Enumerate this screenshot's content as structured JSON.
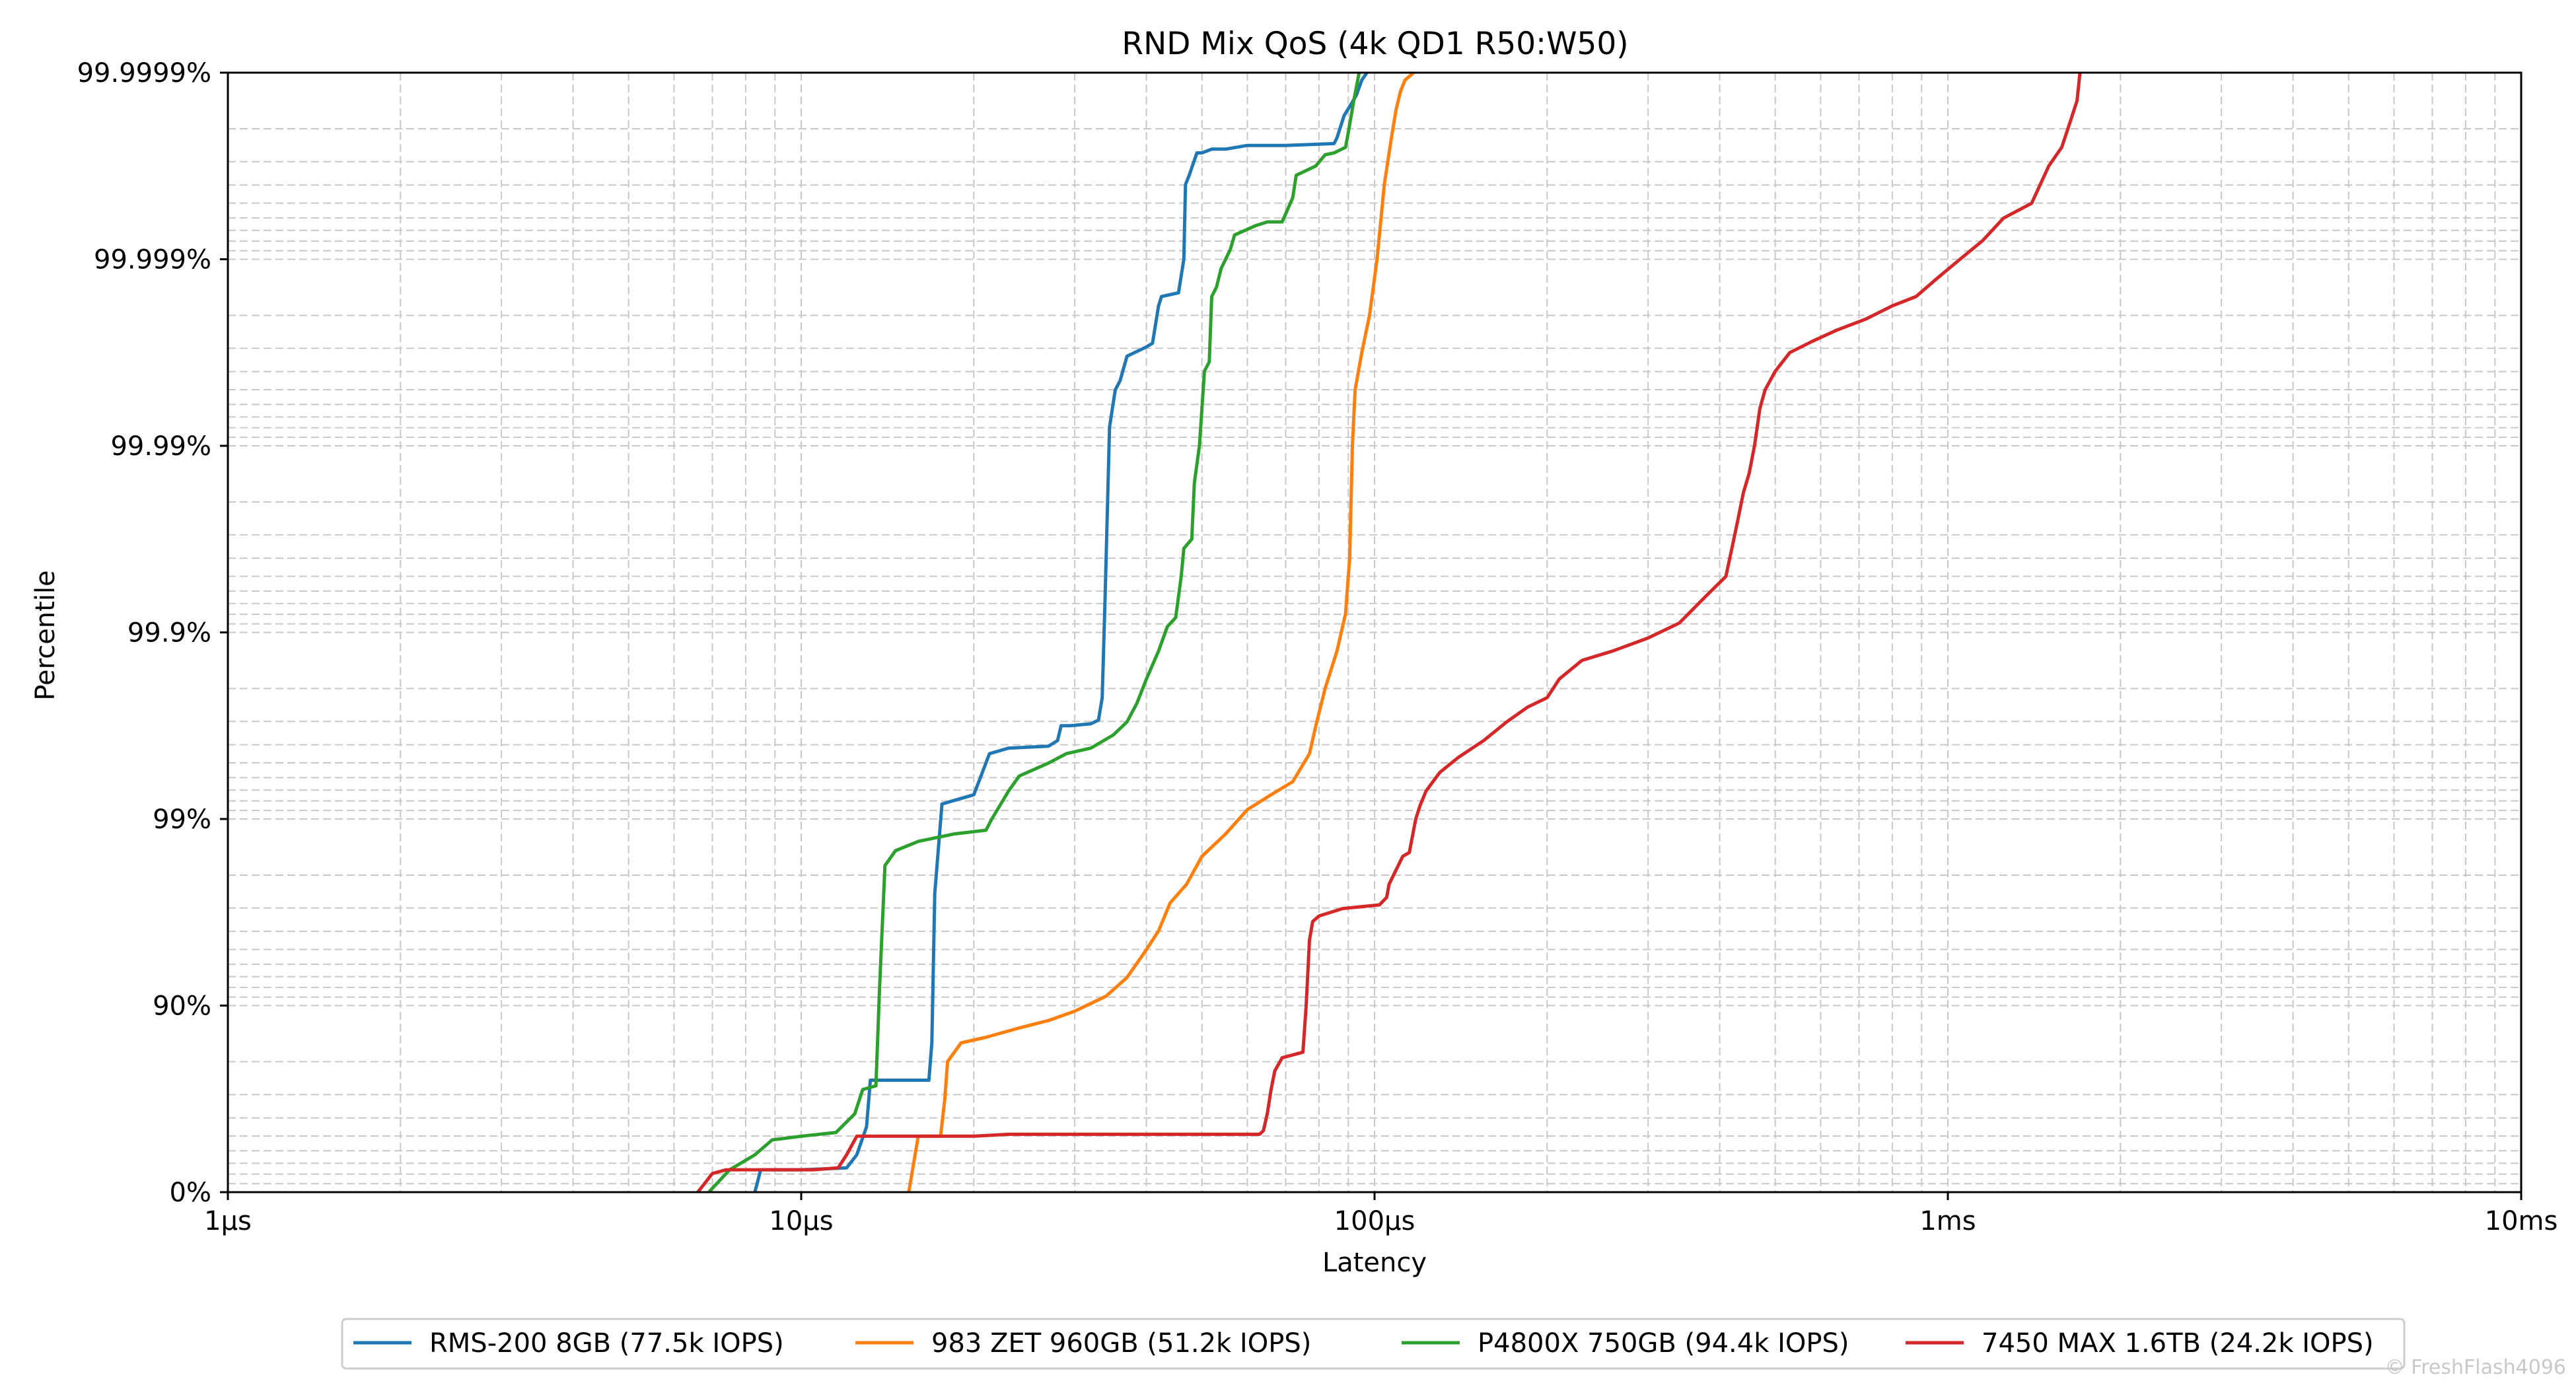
{
  "chart_data": {
    "type": "line",
    "title": "RND Mix QoS (4k QD1 R50:W50)",
    "xlabel": "Latency",
    "ylabel": "Percentile",
    "x_scale": "log",
    "x_unit": "µs",
    "xlim": [
      1,
      10000
    ],
    "x_ticks": [
      {
        "value": 1,
        "label": "1µs"
      },
      {
        "value": 10,
        "label": "10µs"
      },
      {
        "value": 100,
        "label": "100µs"
      },
      {
        "value": 1000,
        "label": "1ms"
      },
      {
        "value": 10000,
        "label": "10ms"
      }
    ],
    "y_scale": "nines",
    "ylim": [
      0,
      6
    ],
    "y_ticks": [
      {
        "value": 0,
        "label": "0%"
      },
      {
        "value": 1,
        "label": "90%"
      },
      {
        "value": 2,
        "label": "99%"
      },
      {
        "value": 3,
        "label": "99.9%"
      },
      {
        "value": 4,
        "label": "99.99%"
      },
      {
        "value": 5,
        "label": "99.999%"
      },
      {
        "value": 6,
        "label": "99.9999%"
      }
    ],
    "grid": true,
    "legend_position": "bottom",
    "series": [
      {
        "name": "RMS-200 8GB (77.5k IOPS)",
        "color": "#1f77b4",
        "points": [
          [
            8.3,
            0
          ],
          [
            8.5,
            0.12
          ],
          [
            10,
            0.12
          ],
          [
            12,
            0.13
          ],
          [
            12.5,
            0.2
          ],
          [
            13,
            0.35
          ],
          [
            13.2,
            0.6
          ],
          [
            15,
            0.6
          ],
          [
            16.7,
            0.6
          ],
          [
            16.9,
            0.8
          ],
          [
            17.1,
            1.6
          ],
          [
            17.6,
            2.08
          ],
          [
            18.5,
            2.1
          ],
          [
            20,
            2.13
          ],
          [
            20.7,
            2.25
          ],
          [
            21.3,
            2.35
          ],
          [
            23,
            2.38
          ],
          [
            27,
            2.39
          ],
          [
            28,
            2.42
          ],
          [
            28.4,
            2.5
          ],
          [
            29.5,
            2.5
          ],
          [
            32,
            2.51
          ],
          [
            33,
            2.53
          ],
          [
            33.5,
            2.65
          ],
          [
            33.9,
            3.2
          ],
          [
            34.5,
            4.1
          ],
          [
            35.3,
            4.3
          ],
          [
            36,
            4.35
          ],
          [
            37,
            4.48
          ],
          [
            40,
            4.53
          ],
          [
            41,
            4.55
          ],
          [
            42,
            4.75
          ],
          [
            42.5,
            4.8
          ],
          [
            45.5,
            4.82
          ],
          [
            46.5,
            5.0
          ],
          [
            46.8,
            5.4
          ],
          [
            47.5,
            5.45
          ],
          [
            49,
            5.57
          ],
          [
            50,
            5.57
          ],
          [
            52,
            5.59
          ],
          [
            55,
            5.59
          ],
          [
            60,
            5.61
          ],
          [
            70,
            5.61
          ],
          [
            85,
            5.62
          ],
          [
            86,
            5.65
          ],
          [
            88.5,
            5.77
          ],
          [
            91,
            5.83
          ],
          [
            93,
            5.88
          ],
          [
            95,
            5.96
          ],
          [
            97,
            6.0
          ]
        ]
      },
      {
        "name": "983 ZET 960GB (51.2k IOPS)",
        "color": "#ff7f0e",
        "points": [
          [
            15.4,
            0
          ],
          [
            15.6,
            0.1
          ],
          [
            16,
            0.3
          ],
          [
            17.5,
            0.3
          ],
          [
            17.8,
            0.5
          ],
          [
            18,
            0.7
          ],
          [
            19,
            0.8
          ],
          [
            21,
            0.83
          ],
          [
            24,
            0.88
          ],
          [
            27,
            0.92
          ],
          [
            30,
            0.97
          ],
          [
            34,
            1.05
          ],
          [
            37,
            1.15
          ],
          [
            40,
            1.3
          ],
          [
            42,
            1.4
          ],
          [
            44,
            1.55
          ],
          [
            47,
            1.65
          ],
          [
            50,
            1.8
          ],
          [
            55,
            1.92
          ],
          [
            60,
            2.05
          ],
          [
            66,
            2.13
          ],
          [
            72,
            2.2
          ],
          [
            77,
            2.35
          ],
          [
            79,
            2.5
          ],
          [
            82,
            2.7
          ],
          [
            86,
            2.9
          ],
          [
            89,
            3.1
          ],
          [
            90.5,
            3.4
          ],
          [
            91,
            3.7
          ],
          [
            91.5,
            4.0
          ],
          [
            92.5,
            4.3
          ],
          [
            95,
            4.5
          ],
          [
            98,
            4.7
          ],
          [
            101,
            5.0
          ],
          [
            104,
            5.4
          ],
          [
            107,
            5.65
          ],
          [
            109,
            5.8
          ],
          [
            111,
            5.9
          ],
          [
            113,
            5.96
          ],
          [
            117,
            6.0
          ]
        ]
      },
      {
        "name": "P4800X 750GB (94.4k IOPS)",
        "color": "#2ca02c",
        "points": [
          [
            6.9,
            0
          ],
          [
            7.5,
            0.12
          ],
          [
            8.3,
            0.2
          ],
          [
            8.9,
            0.28
          ],
          [
            10,
            0.3
          ],
          [
            11.5,
            0.32
          ],
          [
            12.4,
            0.42
          ],
          [
            12.8,
            0.55
          ],
          [
            13.5,
            0.57
          ],
          [
            13.7,
            1.1
          ],
          [
            14,
            1.75
          ],
          [
            14.6,
            1.83
          ],
          [
            16,
            1.88
          ],
          [
            18.5,
            1.92
          ],
          [
            21,
            1.94
          ],
          [
            21.5,
            2.0
          ],
          [
            23,
            2.15
          ],
          [
            24,
            2.23
          ],
          [
            27,
            2.3
          ],
          [
            29,
            2.35
          ],
          [
            32,
            2.38
          ],
          [
            35,
            2.45
          ],
          [
            37,
            2.52
          ],
          [
            38.5,
            2.62
          ],
          [
            40,
            2.75
          ],
          [
            42,
            2.9
          ],
          [
            43.5,
            3.03
          ],
          [
            45,
            3.08
          ],
          [
            46,
            3.3
          ],
          [
            46.5,
            3.45
          ],
          [
            48,
            3.5
          ],
          [
            48.5,
            3.8
          ],
          [
            49.5,
            4.0
          ],
          [
            50.5,
            4.4
          ],
          [
            51.5,
            4.45
          ],
          [
            52,
            4.8
          ],
          [
            53,
            4.85
          ],
          [
            54,
            4.95
          ],
          [
            56,
            5.05
          ],
          [
            57,
            5.13
          ],
          [
            59,
            5.15
          ],
          [
            62,
            5.18
          ],
          [
            65,
            5.2
          ],
          [
            69,
            5.2
          ],
          [
            72,
            5.33
          ],
          [
            73,
            5.45
          ],
          [
            79,
            5.5
          ],
          [
            82,
            5.56
          ],
          [
            85,
            5.57
          ],
          [
            89,
            5.6
          ],
          [
            90,
            5.68
          ],
          [
            92,
            5.85
          ],
          [
            94,
            6.0
          ]
        ]
      },
      {
        "name": "7450 MAX 1.6TB (24.2k IOPS)",
        "color": "#d62728",
        "points": [
          [
            6.6,
            0
          ],
          [
            7,
            0.1
          ],
          [
            7.4,
            0.12
          ],
          [
            8,
            0.12
          ],
          [
            9,
            0.12
          ],
          [
            10.5,
            0.12
          ],
          [
            11.6,
            0.13
          ],
          [
            12,
            0.2
          ],
          [
            12.5,
            0.3
          ],
          [
            14,
            0.3
          ],
          [
            17,
            0.3
          ],
          [
            20,
            0.3
          ],
          [
            23,
            0.31
          ],
          [
            30,
            0.31
          ],
          [
            40,
            0.31
          ],
          [
            55,
            0.31
          ],
          [
            63,
            0.31
          ],
          [
            64,
            0.33
          ],
          [
            65,
            0.42
          ],
          [
            66,
            0.55
          ],
          [
            67,
            0.65
          ],
          [
            69,
            0.72
          ],
          [
            75,
            0.75
          ],
          [
            76,
            1.0
          ],
          [
            77,
            1.35
          ],
          [
            78,
            1.45
          ],
          [
            80,
            1.48
          ],
          [
            88,
            1.52
          ],
          [
            102,
            1.54
          ],
          [
            105,
            1.58
          ],
          [
            106,
            1.65
          ],
          [
            112,
            1.8
          ],
          [
            115,
            1.82
          ],
          [
            118,
            2.0
          ],
          [
            120,
            2.07
          ],
          [
            123,
            2.15
          ],
          [
            130,
            2.25
          ],
          [
            140,
            2.33
          ],
          [
            155,
            2.42
          ],
          [
            170,
            2.52
          ],
          [
            185,
            2.6
          ],
          [
            200,
            2.65
          ],
          [
            210,
            2.75
          ],
          [
            230,
            2.85
          ],
          [
            260,
            2.9
          ],
          [
            300,
            2.97
          ],
          [
            340,
            3.05
          ],
          [
            380,
            3.2
          ],
          [
            410,
            3.3
          ],
          [
            420,
            3.45
          ],
          [
            430,
            3.6
          ],
          [
            440,
            3.75
          ],
          [
            450,
            3.85
          ],
          [
            460,
            4.0
          ],
          [
            470,
            4.2
          ],
          [
            480,
            4.3
          ],
          [
            500,
            4.4
          ],
          [
            530,
            4.5
          ],
          [
            580,
            4.56
          ],
          [
            640,
            4.62
          ],
          [
            720,
            4.68
          ],
          [
            800,
            4.75
          ],
          [
            880,
            4.8
          ],
          [
            960,
            4.9
          ],
          [
            1050,
            5.0
          ],
          [
            1150,
            5.1
          ],
          [
            1250,
            5.22
          ],
          [
            1400,
            5.3
          ],
          [
            1500,
            5.5
          ],
          [
            1580,
            5.6
          ],
          [
            1640,
            5.75
          ],
          [
            1680,
            5.85
          ],
          [
            1700,
            6.0
          ]
        ]
      }
    ]
  },
  "watermark": "© FreshFlash4096"
}
